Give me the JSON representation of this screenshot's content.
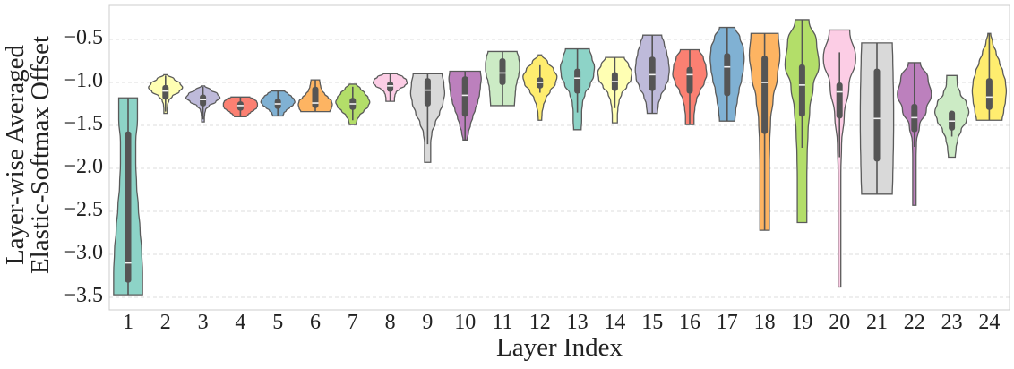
{
  "chart_data": {
    "type": "violin",
    "title": "",
    "xlabel": "Layer Index",
    "ylabel_lines": [
      "Layer-wise Averaged",
      "Elastic-Softmax Offset"
    ],
    "ylim": [
      -3.62,
      -0.22
    ],
    "yticks": [
      -0.5,
      -1.0,
      -1.5,
      -2.0,
      -2.5,
      -3.0,
      -3.5
    ],
    "ytick_labels": [
      "−0.5",
      "−1.0",
      "−1.5",
      "−2.0",
      "−2.5",
      "−3.0",
      "−3.5"
    ],
    "grid": {
      "y": true,
      "style": "dashed",
      "color": "#dddddd"
    },
    "categories": [
      "1",
      "2",
      "3",
      "4",
      "5",
      "6",
      "7",
      "8",
      "9",
      "10",
      "11",
      "12",
      "13",
      "14",
      "15",
      "16",
      "17",
      "18",
      "19",
      "20",
      "21",
      "22",
      "23",
      "24"
    ],
    "series": [
      {
        "layer": "1",
        "color": "#8dd3c7",
        "max": -1.18,
        "min": -3.47,
        "q3": -1.57,
        "q1": -3.33,
        "median": -3.1,
        "whisk_top": -1.18,
        "whisk_bot": -3.47,
        "shape": [
          0.55,
          0.55,
          0.45,
          0.45,
          0.5,
          0.6,
          0.7,
          0.8,
          0.85,
          0.85
        ]
      },
      {
        "layer": "2",
        "color": "#ffffb3",
        "max": -0.91,
        "min": -1.36,
        "q3": -1.03,
        "q1": -1.2,
        "median": -1.1,
        "whisk_top": -0.92,
        "whisk_bot": -1.34,
        "shape": [
          0.1,
          0.5,
          0.85,
          1.0,
          0.8,
          0.4,
          0.2,
          0.12,
          0.1,
          0.1
        ]
      },
      {
        "layer": "3",
        "color": "#bebada",
        "max": -1.04,
        "min": -1.46,
        "q3": -1.14,
        "q1": -1.28,
        "median": -1.2,
        "whisk_top": -1.05,
        "whisk_bot": -1.43,
        "shape": [
          0.1,
          0.45,
          0.85,
          1.0,
          0.75,
          0.35,
          0.15,
          0.1,
          0.08,
          0.08
        ]
      },
      {
        "layer": "4",
        "color": "#fb8072",
        "max": -1.17,
        "min": -1.4,
        "q3": -1.22,
        "q1": -1.33,
        "median": -1.27,
        "whisk_top": -1.17,
        "whisk_bot": -1.4,
        "shape": [
          0.55,
          0.8,
          0.95,
          1.0,
          1.0,
          0.95,
          0.8,
          0.6,
          0.45,
          0.35
        ]
      },
      {
        "layer": "5",
        "color": "#80b1d3",
        "max": -1.1,
        "min": -1.39,
        "q3": -1.19,
        "q1": -1.31,
        "median": -1.25,
        "whisk_top": -1.1,
        "whisk_bot": -1.39,
        "shape": [
          0.4,
          0.6,
          0.8,
          0.95,
          1.0,
          0.9,
          0.7,
          0.5,
          0.35,
          0.3
        ]
      },
      {
        "layer": "6",
        "color": "#fdb462",
        "max": -0.97,
        "min": -1.34,
        "q3": -1.05,
        "q1": -1.3,
        "median": -1.24,
        "whisk_top": -0.97,
        "whisk_bot": -1.34,
        "shape": [
          0.25,
          0.28,
          0.32,
          0.4,
          0.55,
          0.75,
          0.95,
          1.0,
          0.95,
          0.85
        ]
      },
      {
        "layer": "7",
        "color": "#b3de69",
        "max": -1.02,
        "min": -1.49,
        "q3": -1.18,
        "q1": -1.32,
        "median": -1.25,
        "whisk_top": -1.05,
        "whisk_bot": -1.44,
        "shape": [
          0.2,
          0.45,
          0.7,
          0.9,
          1.0,
          0.9,
          0.65,
          0.4,
          0.25,
          0.2
        ]
      },
      {
        "layer": "8",
        "color": "#fccde5",
        "max": -0.9,
        "min": -1.22,
        "q3": -0.99,
        "q1": -1.11,
        "median": -1.04,
        "whisk_top": -0.9,
        "whisk_bot": -1.22,
        "shape": [
          0.4,
          0.75,
          0.95,
          1.0,
          0.85,
          0.55,
          0.35,
          0.28,
          0.25,
          0.25
        ]
      },
      {
        "layer": "9",
        "color": "#d9d9d9",
        "max": -0.9,
        "min": -1.93,
        "q3": -0.95,
        "q1": -1.28,
        "median": -1.09,
        "whisk_top": -0.9,
        "whisk_bot": -1.72,
        "shape": [
          0.85,
          0.95,
          1.0,
          0.9,
          0.7,
          0.45,
          0.25,
          0.18,
          0.18,
          0.18
        ]
      },
      {
        "layer": "10",
        "color": "#bc80bd",
        "max": -0.87,
        "min": -1.67,
        "q3": -0.93,
        "q1": -1.4,
        "median": -1.15,
        "whisk_top": -0.87,
        "whisk_bot": -1.67,
        "shape": [
          0.9,
          0.95,
          0.9,
          0.85,
          0.75,
          0.6,
          0.45,
          0.32,
          0.2,
          0.12
        ]
      },
      {
        "layer": "11",
        "color": "#ccebc5",
        "max": -0.64,
        "min": -1.27,
        "q3": -0.72,
        "q1": -1.03,
        "median": -0.89,
        "whisk_top": -0.64,
        "whisk_bot": -1.27,
        "shape": [
          0.85,
          0.95,
          1.0,
          1.0,
          0.95,
          0.85,
          0.78,
          0.75,
          0.72,
          0.7
        ]
      },
      {
        "layer": "12",
        "color": "#ffed6f",
        "max": -0.68,
        "min": -1.44,
        "q3": -0.94,
        "q1": -1.07,
        "median": -1.0,
        "whisk_top": -0.8,
        "whisk_bot": -1.12,
        "shape": [
          0.1,
          0.45,
          0.8,
          1.0,
          0.9,
          0.6,
          0.35,
          0.2,
          0.12,
          0.1
        ]
      },
      {
        "layer": "13",
        "color": "#8dd3c7",
        "max": -0.61,
        "min": -1.55,
        "q3": -0.84,
        "q1": -1.13,
        "median": -0.95,
        "whisk_top": -0.61,
        "whisk_bot": -1.35,
        "shape": [
          0.7,
          0.85,
          1.0,
          0.95,
          0.75,
          0.45,
          0.3,
          0.25,
          0.25,
          0.22
        ]
      },
      {
        "layer": "14",
        "color": "#ffffb3",
        "max": -0.71,
        "min": -1.47,
        "q3": -0.88,
        "q1": -1.1,
        "median": -0.99,
        "whisk_top": -0.71,
        "whisk_bot": -1.3,
        "shape": [
          0.55,
          0.8,
          1.0,
          0.95,
          0.7,
          0.4,
          0.25,
          0.18,
          0.15,
          0.15
        ]
      },
      {
        "layer": "15",
        "color": "#bebada",
        "max": -0.45,
        "min": -1.36,
        "q3": -0.7,
        "q1": -1.1,
        "median": -0.91,
        "whisk_top": -0.45,
        "whisk_bot": -1.36,
        "shape": [
          0.55,
          0.7,
          0.85,
          0.95,
          1.0,
          0.95,
          0.75,
          0.5,
          0.35,
          0.3
        ]
      },
      {
        "layer": "16",
        "color": "#fb8072",
        "max": -0.62,
        "min": -1.49,
        "q3": -0.82,
        "q1": -1.13,
        "median": -0.91,
        "whisk_top": -0.62,
        "whisk_bot": -1.49,
        "shape": [
          0.55,
          0.8,
          0.95,
          1.0,
          0.85,
          0.6,
          0.4,
          0.3,
          0.25,
          0.25
        ]
      },
      {
        "layer": "17",
        "color": "#80b1d3",
        "max": -0.36,
        "min": -1.45,
        "q3": -0.66,
        "q1": -1.16,
        "median": -0.82,
        "whisk_top": -0.36,
        "whisk_bot": -1.45,
        "shape": [
          0.45,
          0.75,
          0.95,
          1.0,
          0.95,
          0.85,
          0.7,
          0.6,
          0.5,
          0.45
        ]
      },
      {
        "layer": "18",
        "color": "#fdb462",
        "max": -0.43,
        "min": -2.72,
        "q3": -0.69,
        "q1": -1.6,
        "median": -1.0,
        "whisk_top": -0.43,
        "whisk_bot": -2.72,
        "shape": [
          0.8,
          0.9,
          0.75,
          0.5,
          0.35,
          0.3,
          0.28,
          0.28,
          0.28,
          0.28
        ]
      },
      {
        "layer": "19",
        "color": "#b3de69",
        "max": -0.27,
        "min": -2.63,
        "q3": -0.79,
        "q1": -1.4,
        "median": -1.03,
        "whisk_top": -0.27,
        "whisk_bot": -1.76,
        "shape": [
          0.4,
          0.85,
          1.0,
          0.65,
          0.45,
          0.35,
          0.3,
          0.28,
          0.28,
          0.28
        ]
      },
      {
        "layer": "20",
        "color": "#fccde5",
        "max": -0.39,
        "min": -3.38,
        "q3": -1.0,
        "q1": -1.42,
        "median": -1.11,
        "whisk_top": -0.65,
        "whisk_bot": -1.87,
        "shape": [
          0.6,
          0.95,
          0.55,
          0.28,
          0.12,
          0.08,
          0.06,
          0.06,
          0.06,
          0.06
        ]
      },
      {
        "layer": "21",
        "color": "#d9d9d9",
        "max": -0.54,
        "min": -2.3,
        "q3": -0.84,
        "q1": -1.92,
        "median": -1.42,
        "whisk_top": -0.54,
        "whisk_bot": -2.3,
        "shape": [
          0.9,
          0.93,
          0.95,
          0.97,
          0.98,
          0.98,
          0.97,
          0.95,
          0.93,
          0.9
        ]
      },
      {
        "layer": "22",
        "color": "#bc80bd",
        "max": -0.77,
        "min": -2.43,
        "q3": -1.25,
        "q1": -1.58,
        "median": -1.41,
        "whisk_top": -0.77,
        "whisk_bot": -1.75,
        "shape": [
          0.35,
          0.8,
          1.0,
          0.7,
          0.3,
          0.12,
          0.1,
          0.1,
          0.1,
          0.1
        ]
      },
      {
        "layer": "23",
        "color": "#ccebc5",
        "max": -0.92,
        "min": -1.87,
        "q3": -1.33,
        "q1": -1.56,
        "median": -1.45,
        "whisk_top": -1.33,
        "whisk_bot": -1.63,
        "shape": [
          0.3,
          0.32,
          0.5,
          0.85,
          1.0,
          0.85,
          0.55,
          0.35,
          0.25,
          0.2
        ]
      },
      {
        "layer": "24",
        "color": "#ffed6f",
        "max": -0.43,
        "min": -1.44,
        "q3": -0.95,
        "q1": -1.32,
        "median": -1.17,
        "whisk_top": -0.43,
        "whisk_bot": -1.44,
        "shape": [
          0.08,
          0.2,
          0.4,
          0.6,
          0.8,
          0.95,
          1.0,
          0.95,
          0.85,
          0.75
        ]
      }
    ]
  }
}
